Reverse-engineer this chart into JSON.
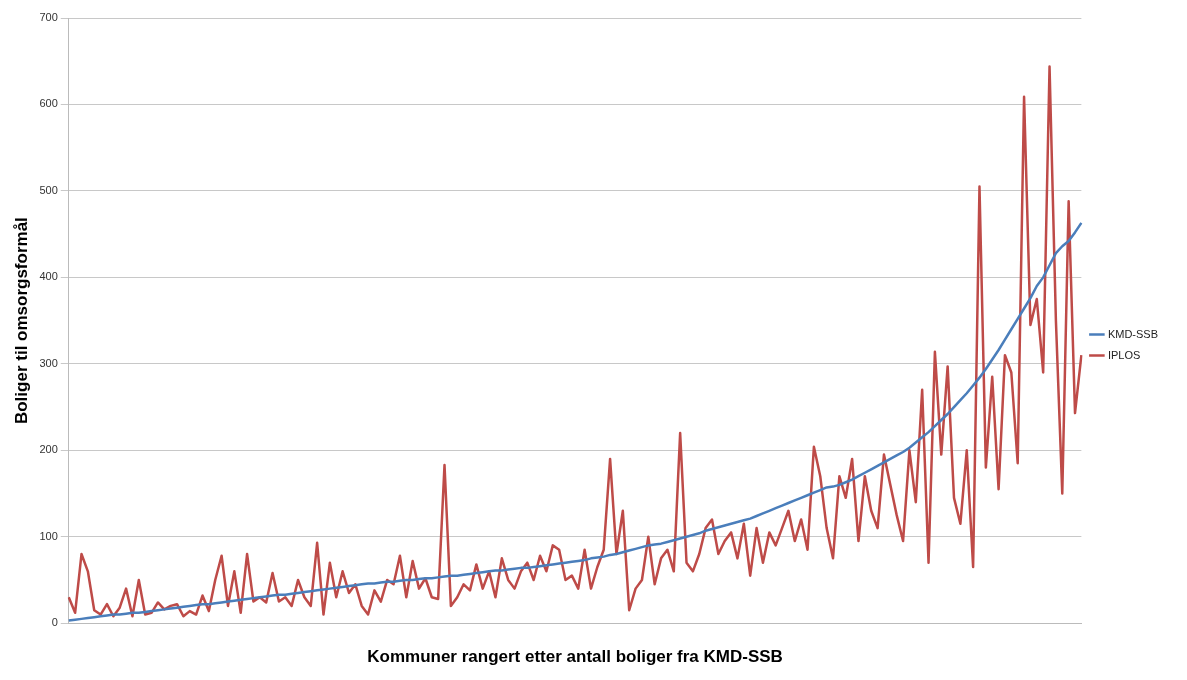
{
  "chart_data": {
    "type": "line",
    "xlabel": "Kommuner rangert etter antall boliger fra KMD-SSB",
    "ylabel": "Boliger til omsorgsformål",
    "categories": [
      null,
      null,
      null,
      null,
      null,
      null,
      null,
      null,
      null,
      null,
      null,
      null,
      null,
      null,
      null,
      null,
      null,
      null,
      null,
      null,
      null,
      null,
      null,
      null,
      null,
      null,
      null,
      null,
      null,
      null,
      null,
      null,
      null,
      null,
      null,
      null,
      null,
      null,
      null,
      null,
      null,
      null,
      null,
      null,
      null,
      null,
      null,
      null,
      null,
      null,
      null,
      null,
      null,
      null,
      null,
      null,
      null,
      null,
      null,
      null,
      null,
      null,
      null,
      null,
      null,
      null,
      null,
      null,
      null,
      null,
      null,
      null,
      null,
      null,
      null,
      null,
      null,
      null,
      null,
      null,
      null,
      null,
      null,
      null,
      null,
      null,
      null,
      null,
      null,
      null,
      null,
      null,
      null,
      null,
      null,
      null,
      null,
      null,
      null,
      null,
      null,
      null,
      null,
      null,
      null,
      null,
      null,
      null,
      null,
      null,
      null,
      null,
      null,
      null,
      null,
      null,
      null,
      null,
      null,
      null,
      null,
      null,
      null,
      null,
      null,
      null,
      null,
      null,
      null,
      null,
      null,
      null,
      null,
      null,
      null,
      null,
      null,
      null,
      null,
      null,
      null,
      null,
      null,
      null,
      null,
      null,
      null,
      null,
      null,
      null,
      null,
      null,
      null,
      null,
      null,
      null,
      null,
      null,
      null,
      null
    ],
    "series": [
      {
        "name": "KMD-SSB",
        "color": "#4a7ebb",
        "values": [
          3,
          4,
          5,
          6,
          7,
          8,
          9,
          10,
          10,
          11,
          12,
          12,
          13,
          14,
          15,
          16,
          17,
          18,
          19,
          20,
          21,
          22,
          22,
          23,
          24,
          25,
          26,
          27,
          28,
          29,
          30,
          31,
          32,
          33,
          33,
          34,
          35,
          36,
          37,
          38,
          39,
          40,
          41,
          42,
          43,
          44,
          45,
          46,
          46,
          47,
          48,
          48,
          49,
          50,
          50,
          51,
          52,
          52,
          53,
          54,
          55,
          55,
          56,
          57,
          58,
          59,
          60,
          61,
          61,
          62,
          63,
          64,
          64,
          65,
          66,
          67,
          68,
          69,
          70,
          71,
          72,
          73,
          75,
          76,
          77,
          79,
          80,
          82,
          84,
          86,
          88,
          90,
          91,
          92,
          94,
          96,
          98,
          100,
          102,
          104,
          107,
          109,
          111,
          113,
          115,
          117,
          119,
          121,
          124,
          127,
          130,
          133,
          136,
          139,
          142,
          145,
          148,
          151,
          154,
          157,
          158,
          160,
          163,
          166,
          170,
          174,
          178,
          182,
          186,
          190,
          194,
          198,
          203,
          209,
          215,
          221,
          228,
          235,
          242,
          250,
          258,
          266,
          275,
          284,
          294,
          305,
          316,
          328,
          340,
          352,
          364,
          376,
          390,
          400,
          414,
          428,
          436,
          442,
          452,
          463
        ]
      },
      {
        "name": "IPLOS",
        "color": "#be4b48",
        "values": [
          30,
          12,
          80,
          60,
          15,
          10,
          22,
          8,
          18,
          40,
          8,
          50,
          10,
          12,
          24,
          16,
          20,
          22,
          8,
          14,
          10,
          32,
          14,
          50,
          78,
          20,
          60,
          12,
          80,
          25,
          30,
          24,
          58,
          25,
          30,
          20,
          50,
          30,
          20,
          93,
          10,
          70,
          30,
          60,
          35,
          45,
          20,
          10,
          38,
          25,
          50,
          45,
          78,
          30,
          72,
          40,
          52,
          30,
          28,
          183,
          20,
          30,
          45,
          38,
          68,
          40,
          60,
          30,
          75,
          50,
          40,
          60,
          70,
          50,
          78,
          60,
          90,
          85,
          50,
          55,
          40,
          85,
          40,
          65,
          85,
          190,
          80,
          130,
          15,
          40,
          50,
          100,
          45,
          75,
          85,
          60,
          220,
          70,
          60,
          80,
          110,
          120,
          80,
          95,
          105,
          75,
          115,
          55,
          110,
          70,
          105,
          90,
          110,
          130,
          95,
          120,
          85,
          204,
          170,
          110,
          75,
          170,
          145,
          190,
          95,
          170,
          130,
          110,
          195,
          160,
          125,
          95,
          200,
          140,
          270,
          70,
          314,
          195,
          297,
          145,
          115,
          200,
          65,
          505,
          180,
          285,
          155,
          310,
          290,
          185,
          609,
          345,
          375,
          290,
          644,
          350,
          150,
          488,
          243,
          310
        ]
      }
    ],
    "ylim": [
      0,
      700
    ],
    "yticks": [
      0,
      100,
      200,
      300,
      400,
      500,
      600,
      700
    ],
    "grid": "y",
    "legend": "right",
    "marker": "none",
    "line_style": "solid"
  }
}
